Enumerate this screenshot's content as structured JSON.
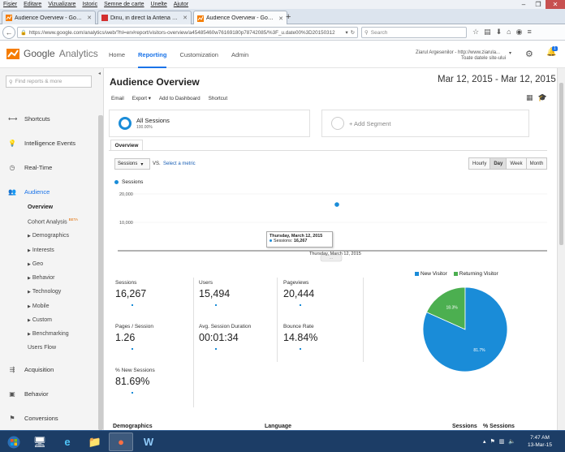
{
  "browser": {
    "menu": [
      "Fișier",
      "Editare",
      "Vizualizare",
      "Istoric",
      "Semne de carte",
      "Unelte",
      "Ajutor"
    ],
    "tabs": [
      {
        "label": "Audience Overview - Goog..."
      },
      {
        "label": "Dinu, in direct la Antena St..."
      },
      {
        "label": "Audience Overview - Goog..."
      }
    ],
    "new_tab": "+",
    "url": "https://www.google.com/analytics/web/?hl=en#report/visitors-overview/a45485460w76169180p78742085/%3F_u.date00%3D20150312",
    "search_placeholder": "Search"
  },
  "ga": {
    "logo_google": "Google",
    "logo_analytics": "Analytics",
    "nav": [
      "Home",
      "Reporting",
      "Customization",
      "Admin"
    ],
    "account_line1": "Ziarul Argesenilor - http://www.ziarula...",
    "account_line2": "Toate datele site-ului",
    "notification_count": "1"
  },
  "sidebar": {
    "search_placeholder": "Find reports & more",
    "items": [
      {
        "label": "Shortcuts",
        "icon": "arrows-icon"
      },
      {
        "label": "Intelligence Events",
        "icon": "bulb-icon"
      },
      {
        "label": "Real-Time",
        "icon": "clock-icon"
      },
      {
        "label": "Audience",
        "icon": "people-icon"
      },
      {
        "label": "Acquisition",
        "icon": "acquisition-icon"
      },
      {
        "label": "Behavior",
        "icon": "behavior-icon"
      },
      {
        "label": "Conversions",
        "icon": "flag-icon"
      }
    ],
    "audience_sub": {
      "overview": "Overview",
      "cohort": "Cohort Analysis",
      "beta": "BETA",
      "demographics": "Demographics",
      "interests": "Interests",
      "geo": "Geo",
      "behavior": "Behavior",
      "technology": "Technology",
      "mobile": "Mobile",
      "custom": "Custom",
      "benchmarking": "Benchmarking",
      "users_flow": "Users Flow"
    }
  },
  "main": {
    "title": "Audience Overview",
    "date_range": "Mar 12, 2015 - Mar 12, 2015",
    "toolbar": [
      "Email",
      "Export ▾",
      "Add to Dashboard",
      "Shortcut"
    ],
    "segment1": {
      "label": "All Sessions",
      "pct": "100.00%"
    },
    "segment2": {
      "label": "+ Add Segment"
    },
    "overview_tab": "Overview",
    "metric_select": "Sessions",
    "vs": "VS.",
    "select_metric": "Select a metric",
    "granularity": [
      "Hourly",
      "Day",
      "Week",
      "Month"
    ],
    "legend_sessions": "Sessions",
    "tooltip": {
      "date": "Thursday, March 12, 2015",
      "series": "Sessions:",
      "value": "16,267"
    },
    "x_label": "Thursday, March 12, 2015",
    "stats": [
      {
        "name": "Sessions",
        "value": "16,267"
      },
      {
        "name": "Users",
        "value": "15,494"
      },
      {
        "name": "Pageviews",
        "value": "20,444"
      },
      {
        "name": "Pages / Session",
        "value": "1.26"
      },
      {
        "name": "Avg. Session Duration",
        "value": "00:01:34"
      },
      {
        "name": "Bounce Rate",
        "value": "14.84%"
      },
      {
        "name": "% New Sessions",
        "value": "81.69%"
      }
    ],
    "pie_legend": {
      "new": "New Visitor",
      "returning": "Returning Visitor"
    },
    "bottom": {
      "demographics": "Demographics",
      "language": "Language",
      "sessions": "Sessions",
      "pct_sessions": "% Sessions"
    }
  },
  "chart_data": [
    {
      "type": "line",
      "series": [
        {
          "name": "Sessions",
          "values": [
            16267
          ]
        }
      ],
      "x": [
        "Thursday, March 12, 2015"
      ],
      "y_ticks": [
        "20,000",
        "10,000"
      ],
      "ylim": [
        0,
        25000
      ],
      "color": "#1a8cd8"
    },
    {
      "type": "pie",
      "categories": [
        "New Visitor",
        "Returning Visitor"
      ],
      "values": [
        81.7,
        18.3
      ],
      "labels": [
        "81.7%",
        "18.3%"
      ],
      "colors": [
        "#1a8cd8",
        "#4caf50"
      ]
    }
  ],
  "taskbar": {
    "time": "7:47 AM",
    "date": "13-Mar-15"
  }
}
